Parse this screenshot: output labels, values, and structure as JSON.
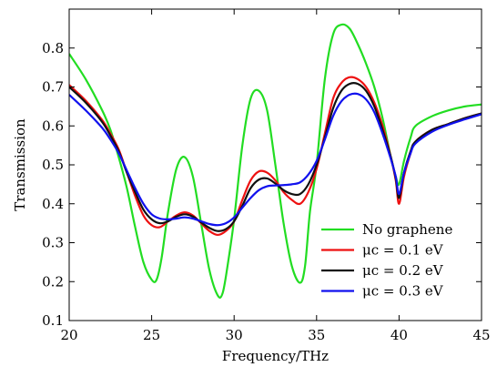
{
  "chart_data": {
    "type": "line",
    "xlabel": "Frequency/THz",
    "ylabel": "Transmission",
    "xlim": [
      20,
      45
    ],
    "ylim": [
      0.1,
      0.9
    ],
    "xticks": [
      20,
      25,
      30,
      35,
      40,
      45
    ],
    "yticks": [
      0.1,
      0.2,
      0.3,
      0.4,
      0.5,
      0.6,
      0.7,
      0.8
    ],
    "legend_position": "bottom-right",
    "series": [
      {
        "name": "No graphene",
        "color": "#22dd22",
        "x": [
          20,
          21,
          22,
          22.5,
          23,
          23.5,
          24,
          24.5,
          25,
          25.3,
          25.6,
          26,
          26.5,
          27,
          27.5,
          28,
          28.5,
          29,
          29.3,
          29.6,
          30,
          30.5,
          31,
          31.5,
          32,
          32.5,
          33,
          33.5,
          34,
          34.3,
          34.6,
          35,
          35.5,
          36,
          36.5,
          37,
          37.5,
          38,
          38.5,
          39,
          39.5,
          39.8,
          40,
          40.3,
          40.7,
          41,
          42,
          43,
          44,
          45
        ],
        "y": [
          0.785,
          0.72,
          0.64,
          0.59,
          0.52,
          0.44,
          0.34,
          0.25,
          0.205,
          0.205,
          0.26,
          0.38,
          0.49,
          0.52,
          0.47,
          0.35,
          0.23,
          0.165,
          0.17,
          0.24,
          0.36,
          0.55,
          0.67,
          0.69,
          0.64,
          0.5,
          0.35,
          0.24,
          0.197,
          0.24,
          0.38,
          0.5,
          0.72,
          0.835,
          0.86,
          0.85,
          0.81,
          0.76,
          0.7,
          0.62,
          0.52,
          0.47,
          0.45,
          0.51,
          0.57,
          0.6,
          0.625,
          0.64,
          0.65,
          0.655
        ]
      },
      {
        "name": "μc = 0.1 eV",
        "color": "#ee1111",
        "x": [
          20,
          21,
          22,
          22.5,
          23,
          23.5,
          24,
          24.5,
          25,
          25.5,
          26,
          26.5,
          27,
          27.5,
          28,
          28.5,
          29,
          29.5,
          30,
          30.5,
          31,
          31.5,
          32,
          32.5,
          33,
          33.5,
          34,
          34.5,
          35,
          35.5,
          36,
          36.5,
          37,
          37.5,
          38,
          38.5,
          39,
          39.5,
          39.8,
          40,
          40.3,
          40.7,
          41,
          42,
          43,
          44,
          45
        ],
        "y": [
          0.705,
          0.665,
          0.615,
          0.58,
          0.54,
          0.48,
          0.42,
          0.37,
          0.345,
          0.34,
          0.355,
          0.37,
          0.378,
          0.37,
          0.35,
          0.33,
          0.32,
          0.33,
          0.355,
          0.41,
          0.46,
          0.483,
          0.48,
          0.46,
          0.43,
          0.41,
          0.4,
          0.43,
          0.49,
          0.58,
          0.67,
          0.71,
          0.725,
          0.72,
          0.7,
          0.66,
          0.6,
          0.52,
          0.46,
          0.4,
          0.47,
          0.53,
          0.56,
          0.59,
          0.605,
          0.62,
          0.632
        ]
      },
      {
        "name": "μc = 0.2 eV",
        "color": "#111111",
        "x": [
          20,
          21,
          22,
          22.5,
          23,
          23.5,
          24,
          24.5,
          25,
          25.5,
          26,
          26.5,
          27,
          27.5,
          28,
          28.5,
          29,
          29.5,
          30,
          30.5,
          31,
          31.5,
          32,
          32.5,
          33,
          33.5,
          34,
          34.5,
          35,
          35.5,
          36,
          36.5,
          37,
          37.5,
          38,
          38.5,
          39,
          39.5,
          39.8,
          40,
          40.3,
          40.7,
          41,
          42,
          43,
          44,
          45
        ],
        "y": [
          0.7,
          0.66,
          0.61,
          0.575,
          0.535,
          0.48,
          0.43,
          0.385,
          0.36,
          0.35,
          0.355,
          0.367,
          0.373,
          0.367,
          0.352,
          0.338,
          0.33,
          0.335,
          0.355,
          0.395,
          0.44,
          0.462,
          0.465,
          0.452,
          0.435,
          0.425,
          0.425,
          0.45,
          0.5,
          0.57,
          0.645,
          0.69,
          0.708,
          0.708,
          0.69,
          0.65,
          0.59,
          0.52,
          0.465,
          0.415,
          0.48,
          0.535,
          0.56,
          0.59,
          0.605,
          0.62,
          0.632
        ]
      },
      {
        "name": "μc = 0.3 eV",
        "color": "#1111ee",
        "x": [
          20,
          21,
          22,
          22.5,
          23,
          23.5,
          24,
          24.5,
          25,
          25.5,
          26,
          26.5,
          27,
          27.5,
          28,
          28.5,
          29,
          29.5,
          30,
          30.5,
          31,
          31.5,
          32,
          32.5,
          33,
          33.5,
          34,
          34.5,
          35,
          35.5,
          36,
          36.5,
          37,
          37.5,
          38,
          38.5,
          39,
          39.5,
          39.8,
          40,
          40.3,
          40.7,
          41,
          42,
          43,
          44,
          45
        ],
        "y": [
          0.68,
          0.64,
          0.595,
          0.565,
          0.53,
          0.485,
          0.44,
          0.4,
          0.373,
          0.362,
          0.36,
          0.362,
          0.365,
          0.362,
          0.355,
          0.348,
          0.345,
          0.35,
          0.365,
          0.39,
          0.415,
          0.435,
          0.445,
          0.447,
          0.448,
          0.45,
          0.455,
          0.475,
          0.51,
          0.565,
          0.625,
          0.663,
          0.68,
          0.682,
          0.668,
          0.635,
          0.58,
          0.515,
          0.47,
          0.425,
          0.48,
          0.53,
          0.555,
          0.585,
          0.603,
          0.617,
          0.63
        ]
      }
    ]
  }
}
